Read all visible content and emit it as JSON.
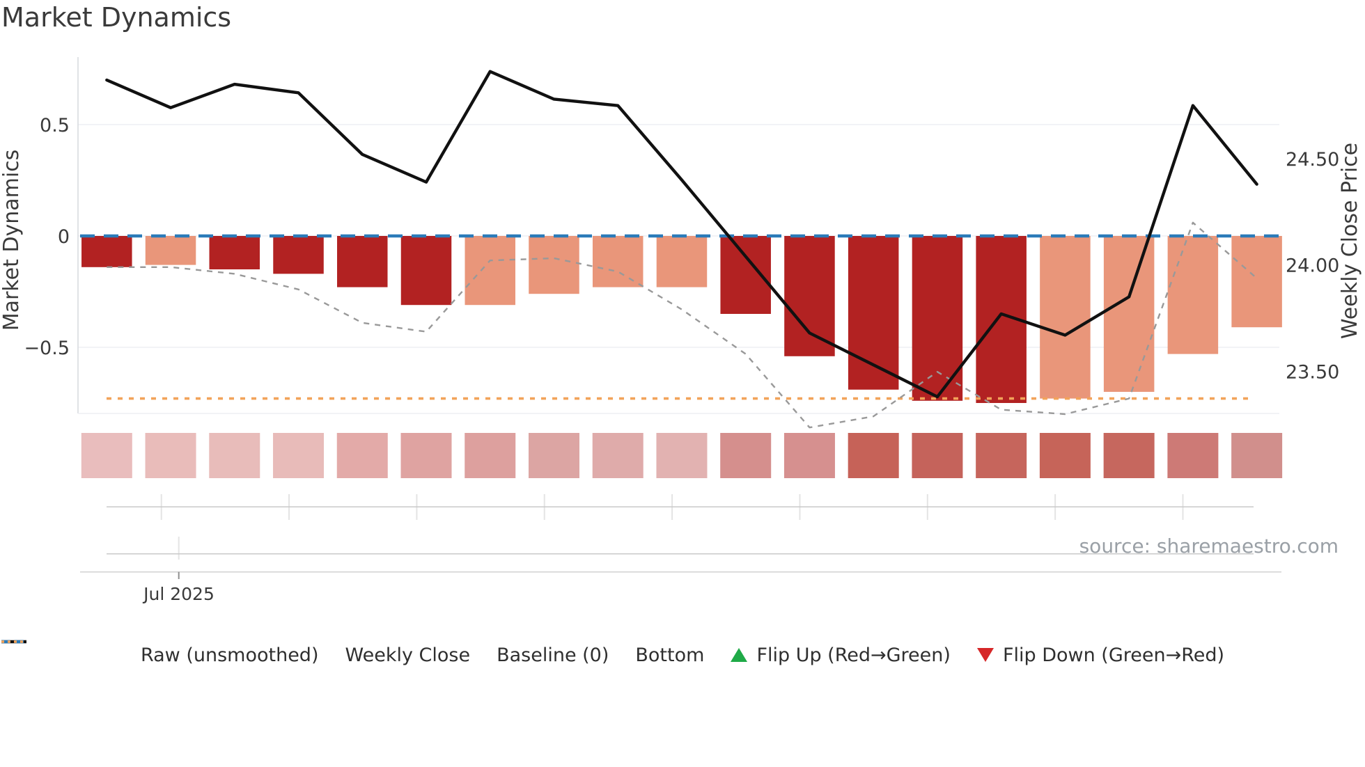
{
  "title": "Market Dynamics",
  "source": "source: sharemaestro.com",
  "axes": {
    "left_label": "Market Dynamics",
    "right_label": "Weekly Close Price",
    "left_ticks": [
      {
        "value": 0.5,
        "label": "0.5"
      },
      {
        "value": 0,
        "label": "0"
      },
      {
        "value": -0.5,
        "label": "−0.5"
      }
    ],
    "right_ticks": [
      {
        "price": 24.5,
        "label": "24.50"
      },
      {
        "price": 24.0,
        "label": "24.00"
      },
      {
        "price": 23.5,
        "label": "23.50"
      }
    ],
    "x_tick_label": "Jul 2025"
  },
  "chart_data": {
    "type": "bar+line",
    "categories": [
      1,
      2,
      3,
      4,
      5,
      6,
      7,
      8,
      9,
      10,
      11,
      12,
      13,
      14,
      15,
      16,
      17,
      18,
      19
    ],
    "x_axis_note": "19 weekly periods, month boundary labeled Jul 2025",
    "left_ylim": [
      -0.8,
      0.81
    ],
    "right_ylim": [
      23.3,
      24.98
    ],
    "grid": "horizontal only",
    "legend_position": "bottom",
    "series": [
      {
        "name": "Market Dynamics (bars)",
        "type": "bar",
        "axis": "left",
        "values": [
          -0.14,
          -0.13,
          -0.15,
          -0.17,
          -0.23,
          -0.31,
          -0.31,
          -0.26,
          -0.23,
          -0.23,
          -0.35,
          -0.54,
          -0.69,
          -0.74,
          -0.75,
          -0.73,
          -0.7,
          -0.53,
          -0.41
        ],
        "bar_styles": [
          "strong",
          "mild",
          "strong",
          "strong",
          "strong",
          "strong",
          "mild",
          "mild",
          "mild",
          "mild",
          "strong",
          "strong",
          "strong",
          "strong",
          "strong",
          "mild",
          "mild",
          "mild",
          "mild"
        ]
      },
      {
        "name": "Raw (unsmoothed)",
        "type": "line",
        "axis": "left",
        "style": "gray-dashed",
        "values": [
          -0.14,
          -0.14,
          -0.17,
          -0.24,
          -0.39,
          -0.43,
          -0.11,
          -0.1,
          -0.16,
          -0.33,
          -0.53,
          -0.86,
          -0.81,
          -0.61,
          -0.78,
          -0.8,
          -0.73,
          0.06,
          -0.19
        ]
      },
      {
        "name": "Weekly Close",
        "type": "line",
        "axis": "right",
        "style": "black-solid",
        "values": [
          24.87,
          24.74,
          24.85,
          24.81,
          24.52,
          24.39,
          24.91,
          24.78,
          24.75,
          24.4,
          24.04,
          23.68,
          23.53,
          23.38,
          23.77,
          23.67,
          23.85,
          24.75,
          24.38
        ]
      },
      {
        "name": "Baseline (0)",
        "type": "hline",
        "axis": "left",
        "style": "blue-dashed",
        "value": 0
      },
      {
        "name": "Bottom",
        "type": "hline",
        "axis": "left",
        "style": "orange-dotted",
        "value": -0.73
      }
    ],
    "heat_strip": {
      "description": "one shaded square per week under the plot",
      "colors": [
        "#e9bdbd",
        "#e9bcba",
        "#e8bcba",
        "#e8bbb9",
        "#e3aaa8",
        "#dfa3a1",
        "#dda09e",
        "#dca5a3",
        "#dfabaa",
        "#e2b2b1",
        "#d58f8d",
        "#d6908f",
        "#c66258",
        "#c5635b",
        "#c6655c",
        "#c66459",
        "#c6675e",
        "#cd7a76",
        "#d18f8c"
      ]
    }
  },
  "legend": [
    {
      "label": "Raw (unsmoothed)",
      "marker": "gray-dashed-line"
    },
    {
      "label": "Weekly Close",
      "marker": "black-solid-line"
    },
    {
      "label": "Baseline (0)",
      "marker": "blue-dashed-line"
    },
    {
      "label": "Bottom",
      "marker": "orange-dotted-line"
    },
    {
      "label": "Flip Up (Red→Green)",
      "marker": "green-up-triangle"
    },
    {
      "label": "Flip Down (Green→Red)",
      "marker": "red-down-triangle"
    }
  ],
  "colors": {
    "bar_strong": "#b22222",
    "bar_mild": "#e9967a",
    "baseline": "#2b7bb9",
    "bottom": "#f2a35a",
    "raw": "#999999",
    "weekly_close": "#111111",
    "grid": "#edeff4",
    "spine": "#d9dbe0",
    "text": "#3a3a3a",
    "muted_text": "#9aa0a6",
    "flip_up": "#1faa47",
    "flip_down": "#d62728"
  }
}
